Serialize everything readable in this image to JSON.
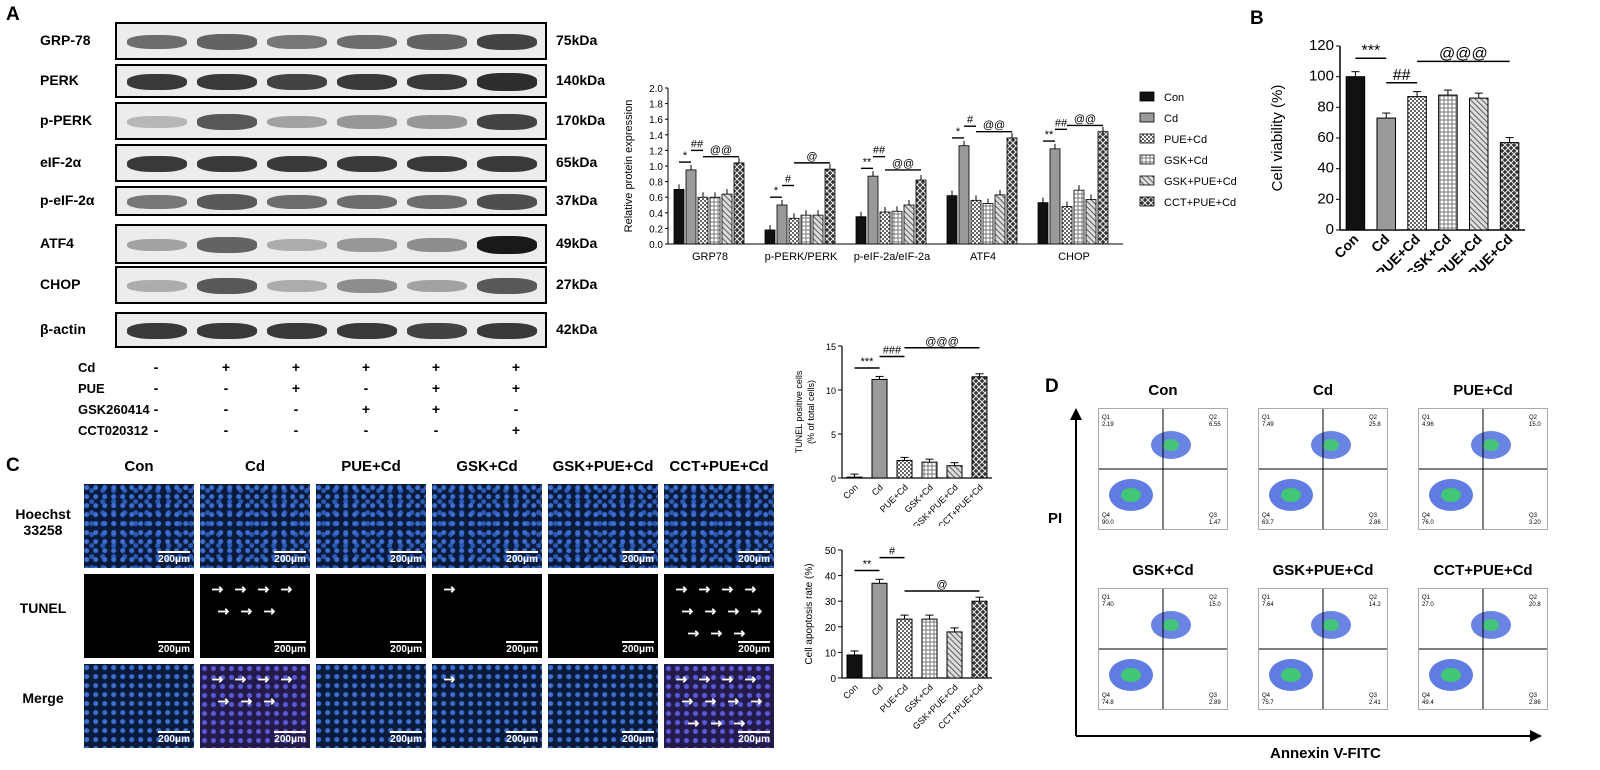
{
  "panels": {
    "a": "A",
    "b": "B",
    "c": "C",
    "d": "D"
  },
  "blot": {
    "rows": [
      {
        "protein": "GRP-78",
        "kda": "75kDa",
        "intensity": [
          0.6,
          0.65,
          0.55,
          0.6,
          0.65,
          0.8
        ]
      },
      {
        "protein": "PERK",
        "kda": "140kDa",
        "intensity": [
          0.85,
          0.85,
          0.8,
          0.85,
          0.85,
          0.9
        ]
      },
      {
        "protein": "p-PERK",
        "kda": "170kDa",
        "intensity": [
          0.25,
          0.7,
          0.35,
          0.4,
          0.4,
          0.8
        ]
      },
      {
        "protein": "eIF-2α",
        "kda": "65kDa",
        "intensity": [
          0.85,
          0.85,
          0.85,
          0.85,
          0.85,
          0.85
        ]
      },
      {
        "protein": "p-eIF-2α",
        "kda": "37kDa",
        "intensity": [
          0.55,
          0.7,
          0.6,
          0.6,
          0.6,
          0.75
        ]
      },
      {
        "protein": "ATF4",
        "kda": "49kDa",
        "intensity": [
          0.35,
          0.65,
          0.3,
          0.4,
          0.45,
          1.0
        ]
      },
      {
        "protein": "CHOP",
        "kda": "27kDa",
        "intensity": [
          0.3,
          0.7,
          0.3,
          0.45,
          0.35,
          0.7
        ]
      },
      {
        "protein": "β-actin",
        "kda": "42kDa",
        "intensity": [
          0.85,
          0.85,
          0.85,
          0.85,
          0.8,
          0.85
        ]
      }
    ],
    "treatments": [
      {
        "name": "Cd",
        "signs": [
          "-",
          "+",
          "+",
          "+",
          "+",
          "+"
        ]
      },
      {
        "name": "PUE",
        "signs": [
          "-",
          "-",
          "+",
          "-",
          "+",
          "+"
        ]
      },
      {
        "name": "GSK260414",
        "signs": [
          "-",
          "-",
          "-",
          "+",
          "+",
          "-"
        ]
      },
      {
        "name": "CCT020312",
        "signs": [
          "-",
          "-",
          "-",
          "-",
          "-",
          "+"
        ]
      }
    ]
  },
  "chart_data": [
    {
      "type": "bar",
      "ylabel": "Relative protein expression",
      "ylim": [
        0,
        2.0
      ],
      "yticks": [
        "0.0",
        "0.2",
        "0.4",
        "0.6",
        "0.8",
        "1.0",
        "1.2",
        "1.4",
        "1.6",
        "1.8",
        "2.0"
      ],
      "categories": [
        "GRP78",
        "p-PERK/PERK",
        "p-eIF-2a/eIF-2a",
        "ATF4",
        "CHOP"
      ],
      "series": [
        {
          "name": "Con",
          "values": [
            0.7,
            0.18,
            0.35,
            0.62,
            0.53
          ]
        },
        {
          "name": "Cd",
          "values": [
            0.95,
            0.5,
            0.87,
            1.26,
            1.22
          ]
        },
        {
          "name": "PUE+Cd",
          "values": [
            0.6,
            0.33,
            0.41,
            0.56,
            0.48
          ]
        },
        {
          "name": "GSK+Cd",
          "values": [
            0.6,
            0.37,
            0.42,
            0.52,
            0.69
          ]
        },
        {
          "name": "GSK+PUE+Cd",
          "values": [
            0.64,
            0.37,
            0.5,
            0.63,
            0.57
          ]
        },
        {
          "name": "CCT+PUE+Cd",
          "values": [
            1.04,
            0.96,
            0.82,
            1.36,
            1.44
          ]
        }
      ],
      "annotations": [
        "*",
        "##",
        "@@",
        "*",
        "#",
        "@",
        "**",
        "##",
        "@@",
        "*",
        "#",
        "@@",
        "**",
        "##",
        "@@"
      ]
    },
    {
      "type": "bar",
      "ylabel": "Cell viability (%)",
      "ylim": [
        0,
        120
      ],
      "yticks": [
        "0",
        "20",
        "40",
        "60",
        "80",
        "100",
        "120"
      ],
      "categories": [
        "Con",
        "Cd",
        "PUE+Cd",
        "GSK+Cd",
        "GSK+PUE+Cd",
        "CCT+PUE+Cd"
      ],
      "values": [
        100,
        73,
        87,
        88,
        86,
        57
      ],
      "annotations": [
        "***",
        "##",
        "@@@"
      ]
    },
    {
      "type": "bar",
      "ylabel": "TUNEL positive cells",
      "ylabel2": "(% of total cells)",
      "ylim": [
        0,
        15
      ],
      "yticks": [
        "0",
        "5",
        "10",
        "15"
      ],
      "categories": [
        "Con",
        "Cd",
        "PUE+Cd",
        "GSK+Cd",
        "GSK+PUE+Cd",
        "CCT+PUE+Cd"
      ],
      "values": [
        0.1,
        11.2,
        2.0,
        1.8,
        1.4,
        11.5
      ],
      "annotations": [
        "***",
        "###",
        "@@@"
      ]
    },
    {
      "type": "bar",
      "ylabel": "Cell apoptosis rate (%)",
      "ylim": [
        0,
        50
      ],
      "yticks": [
        "0",
        "10",
        "20",
        "30",
        "40",
        "50"
      ],
      "categories": [
        "Con",
        "Cd",
        "PUE+Cd",
        "GSK+Cd",
        "GSK+PUE+Cd",
        "CCT+PUE+Cd"
      ],
      "values": [
        9,
        37,
        23,
        23,
        18,
        30
      ],
      "annotations": [
        "**",
        "#",
        "@"
      ]
    }
  ],
  "micro": {
    "columns": [
      "Con",
      "Cd",
      "PUE+Cd",
      "GSK+Cd",
      "GSK+PUE+Cd",
      "CCT+PUE+Cd"
    ],
    "rows": [
      "Hoechst 33258",
      "TUNEL",
      "Merge"
    ],
    "scale": "200μm"
  },
  "flow": {
    "titles": [
      "Con",
      "Cd",
      "PUE+Cd",
      "GSK+Cd",
      "GSK+PUE+Cd",
      "CCT+PUE+Cd"
    ],
    "xlabel": "Annexin V-FITC",
    "ylabel": "PI",
    "quadrants": [
      {
        "q1": "2.19",
        "q2": "6.55",
        "q3": "1.47",
        "q4": "90.0"
      },
      {
        "q1": "7.49",
        "q2": "25.8",
        "q3": "2.86",
        "q4": "63.7"
      },
      {
        "q1": "4.96",
        "q2": "15.0",
        "q3": "3.20",
        "q4": "76.0"
      },
      {
        "q1": "7.40",
        "q2": "15.0",
        "q3": "2.89",
        "q4": "74.8"
      },
      {
        "q1": "7.64",
        "q2": "14.2",
        "q3": "2.41",
        "q4": "75.7"
      },
      {
        "q1": "27.0",
        "q2": "20.8",
        "q3": "2.86",
        "q4": "49.4"
      }
    ]
  },
  "colors": {
    "blotBg": "#ececec",
    "band": "#2a2a2a",
    "hoechst": "#2d5fb8",
    "flowBlue": "#2b50d8",
    "flowGreen": "#3ecf6a"
  }
}
